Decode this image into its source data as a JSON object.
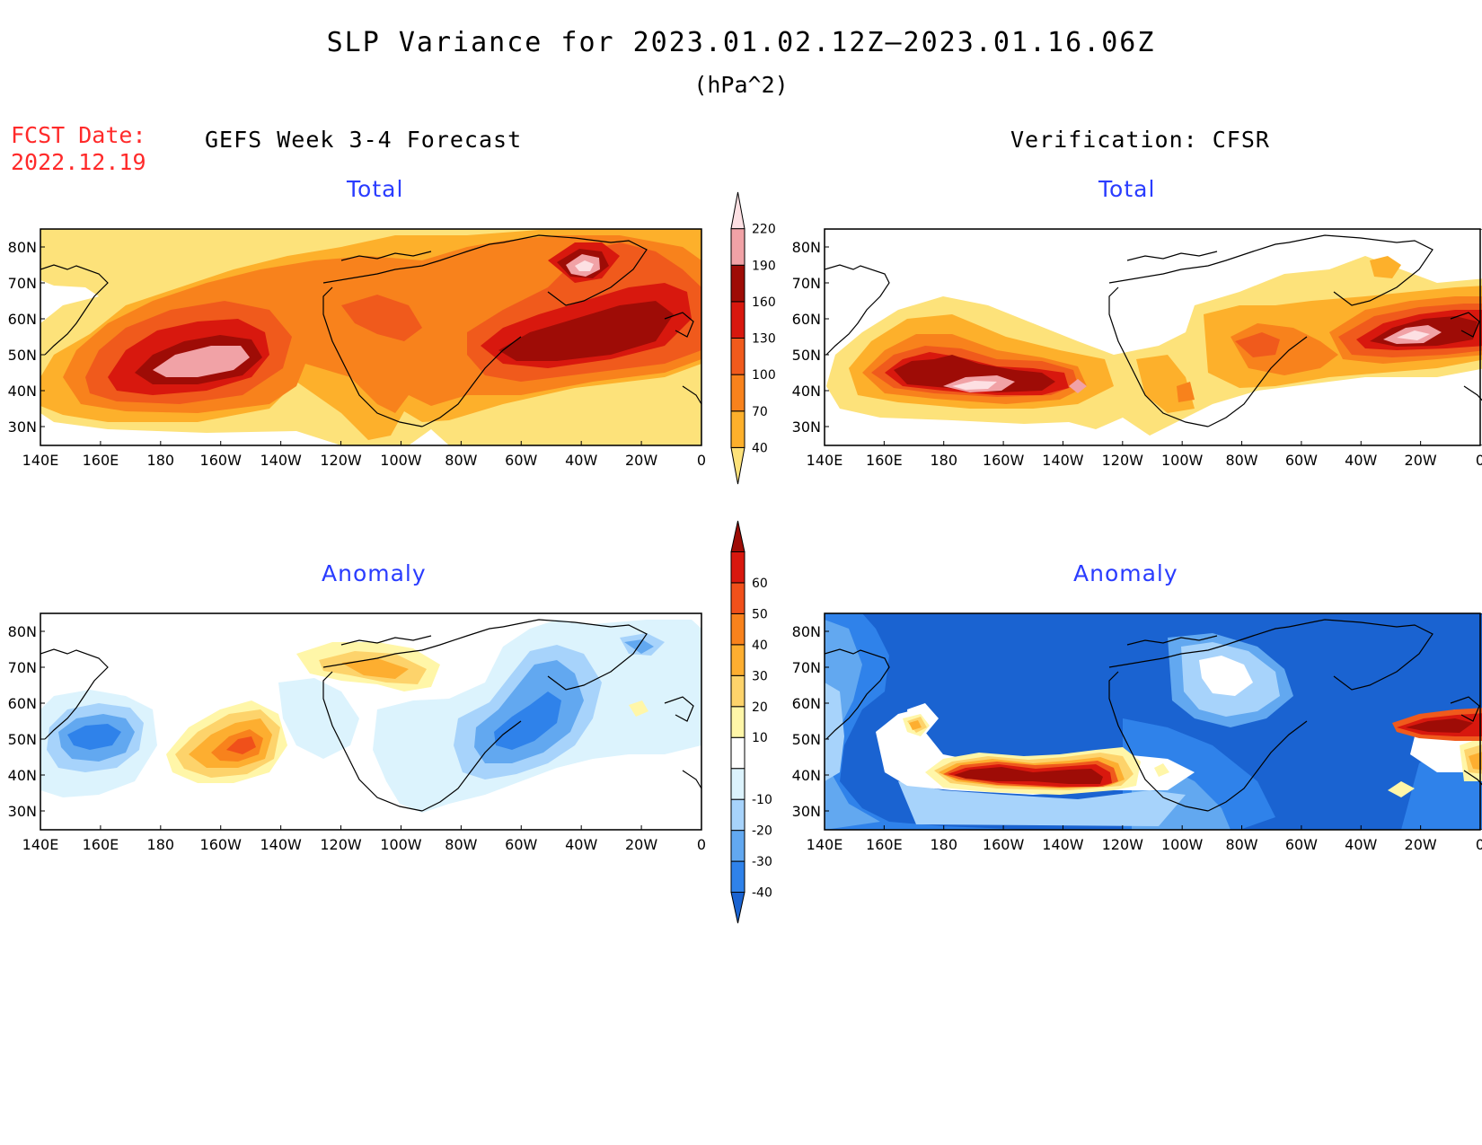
{
  "header": {
    "title": "SLP Variance for 2023.01.02.12Z—2023.01.16.06Z",
    "units": "(hPa^2)",
    "fcst_label": "FCST Date:",
    "fcst_date": "2022.12.19",
    "left_column": "GEFS Week 3-4 Forecast",
    "right_column": "Verification: CFSR"
  },
  "panels": {
    "gefs_total": {
      "title": "Total"
    },
    "cfsr_total": {
      "title": "Total"
    },
    "gefs_anomaly": {
      "title": "Anomaly"
    },
    "cfsr_anomaly": {
      "title": "Anomaly"
    }
  },
  "axes": {
    "lat_labels": [
      "80N",
      "70N",
      "60N",
      "50N",
      "40N",
      "30N"
    ],
    "lon_labels": [
      "140E",
      "160E",
      "180",
      "160W",
      "140W",
      "120W",
      "100W",
      "80W",
      "60W",
      "40W",
      "20W",
      "0"
    ]
  },
  "colorbars": {
    "total": {
      "levels": [
        "40",
        "70",
        "100",
        "130",
        "160",
        "190",
        "220"
      ],
      "colors": [
        "#fde27a",
        "#fdb02b",
        "#f8821c",
        "#f05a1c",
        "#d8180e",
        "#9e0c06",
        "#f1a2a6",
        "#fde0e3"
      ]
    },
    "anomaly": {
      "levels": [
        "-40",
        "-30",
        "-20",
        "-10",
        "10",
        "20",
        "30",
        "40",
        "50",
        "60"
      ],
      "colors": [
        "#1a63d1",
        "#2f82ea",
        "#62a8f0",
        "#a7d3fb",
        "#dcf3fd",
        "#ffffff",
        "#fff6a8",
        "#fdd36b",
        "#fdae30",
        "#f8821c",
        "#f0501a",
        "#d8180e",
        "#9e0c06"
      ]
    }
  }
}
